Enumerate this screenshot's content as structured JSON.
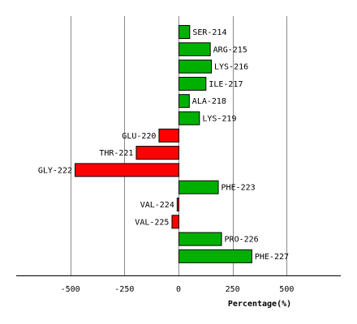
{
  "chart_data": {
    "type": "bar",
    "orientation": "horizontal",
    "categories": [
      "SER-214",
      "ARG-215",
      "LYS-216",
      "ILE-217",
      "ALA-218",
      "LYS-219",
      "GLU-220",
      "THR-221",
      "GLY-222",
      "PHE-223",
      "VAL-224",
      "VAL-225",
      "PRO-226",
      "PHE-227"
    ],
    "values": [
      50,
      145,
      150,
      125,
      48,
      95,
      -92,
      -197,
      -480,
      182,
      -8,
      -32,
      197,
      337
    ],
    "xlabel": "Percentage(%)",
    "ylabel": "",
    "title": "",
    "xlim": [
      -750,
      750
    ],
    "xticks": [
      -500,
      -250,
      0,
      250,
      500
    ],
    "grid": true,
    "colors": {
      "positive": "#00b000",
      "negative": "#ff0000"
    }
  }
}
